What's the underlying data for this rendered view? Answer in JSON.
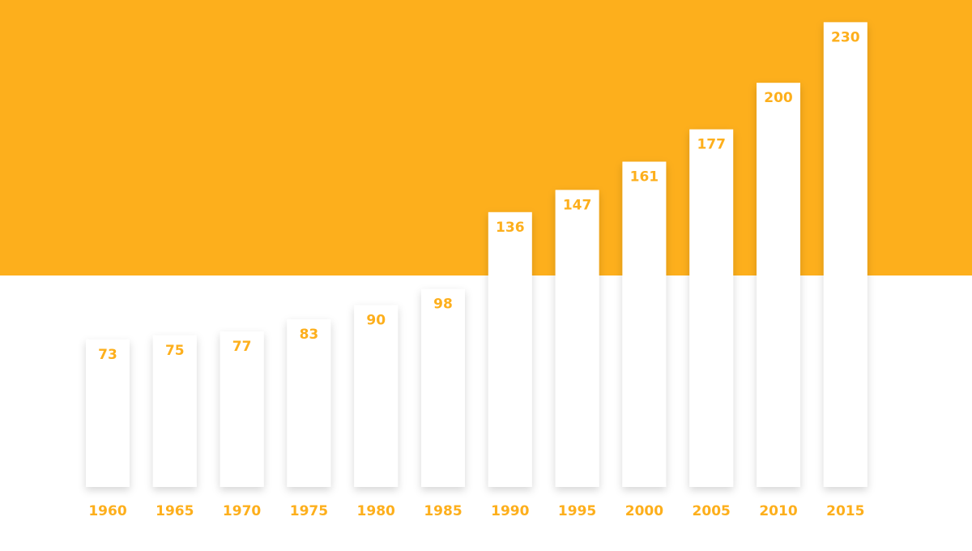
{
  "colors": {
    "accent": "#FDAF1C",
    "bar": "#FFFFFF",
    "background": "#FFFFFF"
  },
  "chart_data": {
    "type": "bar",
    "categories": [
      "1960",
      "1965",
      "1970",
      "1975",
      "1980",
      "1985",
      "1990",
      "1995",
      "2000",
      "2005",
      "2010",
      "2015"
    ],
    "values": [
      73,
      75,
      77,
      83,
      90,
      98,
      136,
      147,
      161,
      177,
      200,
      230
    ],
    "title": "",
    "xlabel": "",
    "ylabel": "",
    "grid": false,
    "legend": "none",
    "data_labels": true
  }
}
